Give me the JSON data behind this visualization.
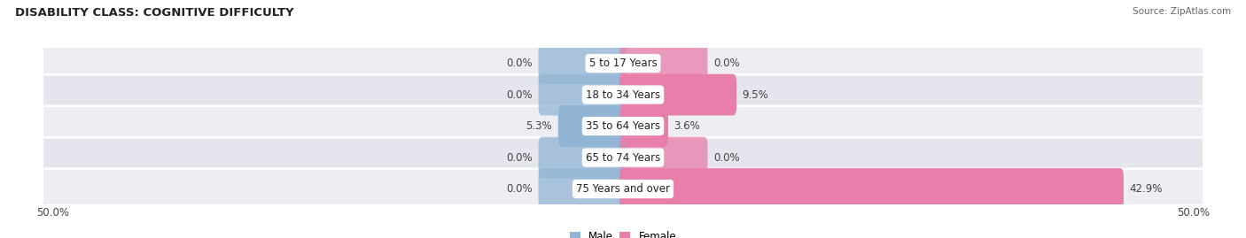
{
  "title": "DISABILITY CLASS: COGNITIVE DIFFICULTY",
  "source": "Source: ZipAtlas.com",
  "categories": [
    "5 to 17 Years",
    "18 to 34 Years",
    "35 to 64 Years",
    "65 to 74 Years",
    "75 Years and over"
  ],
  "male_values": [
    0.0,
    0.0,
    5.3,
    0.0,
    0.0
  ],
  "female_values": [
    0.0,
    9.5,
    3.6,
    0.0,
    42.9
  ],
  "male_color": "#93b5d5",
  "female_color": "#e87faa",
  "male_stub": 7.0,
  "female_stub": 7.0,
  "row_bg_even": "#ededf3",
  "row_bg_odd": "#e5e5ed",
  "xlim": 50.0,
  "bar_height": 0.72,
  "title_fontsize": 9.5,
  "label_fontsize": 8.5,
  "tick_fontsize": 8.5,
  "category_fontsize": 8.5,
  "fig_bg_color": "#ffffff",
  "source_fontsize": 7.5
}
